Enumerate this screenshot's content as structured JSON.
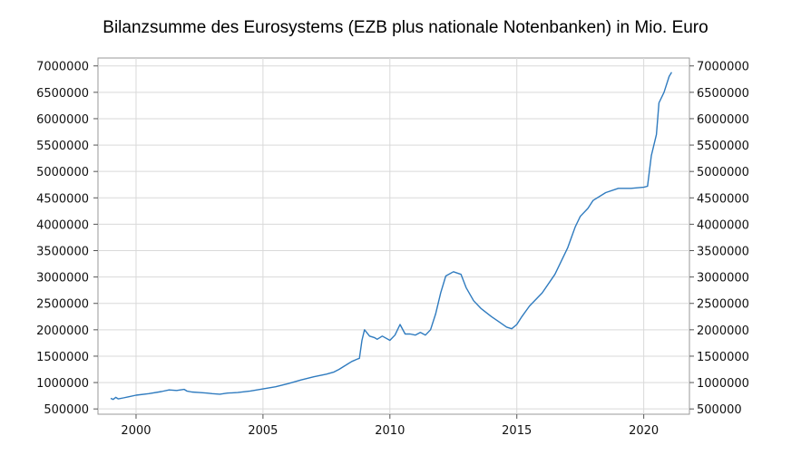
{
  "chart_data": {
    "type": "line",
    "title": "Bilanzsumme des Eurosystems (EZB plus nationale Notenbanken) in Mio. Euro",
    "xlabel": "",
    "ylabel": "",
    "xlim": [
      1998.5,
      2021.8
    ],
    "ylim": [
      400000,
      7150000
    ],
    "x_ticks": [
      2000,
      2005,
      2010,
      2015,
      2020
    ],
    "x_tick_labels": [
      "2000",
      "2005",
      "2010",
      "2015",
      "2020"
    ],
    "y_ticks": [
      500000,
      1000000,
      1500000,
      2000000,
      2500000,
      3000000,
      3500000,
      4000000,
      4500000,
      5000000,
      5500000,
      6000000,
      6500000,
      7000000
    ],
    "y_tick_labels": [
      "500000",
      "1000000",
      "1500000",
      "2000000",
      "2500000",
      "3000000",
      "3500000",
      "4000000",
      "4500000",
      "5000000",
      "5500000",
      "6000000",
      "6500000",
      "7000000"
    ],
    "grid": true,
    "series": [
      {
        "color": "#2f7bbf",
        "points": [
          [
            1999.0,
            700000
          ],
          [
            1999.1,
            680000
          ],
          [
            1999.2,
            720000
          ],
          [
            1999.3,
            690000
          ],
          [
            1999.5,
            710000
          ],
          [
            1999.7,
            730000
          ],
          [
            2000.0,
            760000
          ],
          [
            2000.5,
            790000
          ],
          [
            2001.0,
            830000
          ],
          [
            2001.3,
            860000
          ],
          [
            2001.6,
            850000
          ],
          [
            2001.9,
            870000
          ],
          [
            2002.0,
            840000
          ],
          [
            2002.2,
            820000
          ],
          [
            2002.5,
            810000
          ],
          [
            2002.8,
            800000
          ],
          [
            2003.0,
            790000
          ],
          [
            2003.3,
            780000
          ],
          [
            2003.6,
            800000
          ],
          [
            2004.0,
            810000
          ],
          [
            2004.5,
            840000
          ],
          [
            2005.0,
            880000
          ],
          [
            2005.5,
            920000
          ],
          [
            2006.0,
            980000
          ],
          [
            2006.5,
            1050000
          ],
          [
            2007.0,
            1110000
          ],
          [
            2007.5,
            1160000
          ],
          [
            2007.8,
            1200000
          ],
          [
            2008.0,
            1250000
          ],
          [
            2008.2,
            1310000
          ],
          [
            2008.5,
            1400000
          ],
          [
            2008.7,
            1440000
          ],
          [
            2008.8,
            1460000
          ],
          [
            2008.9,
            1800000
          ],
          [
            2009.0,
            2000000
          ],
          [
            2009.2,
            1880000
          ],
          [
            2009.4,
            1850000
          ],
          [
            2009.5,
            1820000
          ],
          [
            2009.7,
            1880000
          ],
          [
            2010.0,
            1800000
          ],
          [
            2010.2,
            1900000
          ],
          [
            2010.4,
            2100000
          ],
          [
            2010.6,
            1920000
          ],
          [
            2010.8,
            1920000
          ],
          [
            2011.0,
            1900000
          ],
          [
            2011.2,
            1950000
          ],
          [
            2011.4,
            1900000
          ],
          [
            2011.6,
            2000000
          ],
          [
            2011.8,
            2300000
          ],
          [
            2012.0,
            2700000
          ],
          [
            2012.2,
            3020000
          ],
          [
            2012.5,
            3100000
          ],
          [
            2012.8,
            3050000
          ],
          [
            2013.0,
            2800000
          ],
          [
            2013.3,
            2550000
          ],
          [
            2013.6,
            2400000
          ],
          [
            2014.0,
            2250000
          ],
          [
            2014.3,
            2150000
          ],
          [
            2014.6,
            2050000
          ],
          [
            2014.8,
            2020000
          ],
          [
            2015.0,
            2100000
          ],
          [
            2015.2,
            2250000
          ],
          [
            2015.5,
            2450000
          ],
          [
            2016.0,
            2700000
          ],
          [
            2016.5,
            3050000
          ],
          [
            2017.0,
            3550000
          ],
          [
            2017.3,
            3950000
          ],
          [
            2017.5,
            4150000
          ],
          [
            2017.8,
            4300000
          ],
          [
            2018.0,
            4450000
          ],
          [
            2018.5,
            4600000
          ],
          [
            2019.0,
            4680000
          ],
          [
            2019.5,
            4680000
          ],
          [
            2020.0,
            4700000
          ],
          [
            2020.15,
            4720000
          ],
          [
            2020.3,
            5300000
          ],
          [
            2020.5,
            5700000
          ],
          [
            2020.6,
            6300000
          ],
          [
            2020.8,
            6500000
          ],
          [
            2021.0,
            6800000
          ],
          [
            2021.1,
            6880000
          ]
        ]
      }
    ]
  }
}
